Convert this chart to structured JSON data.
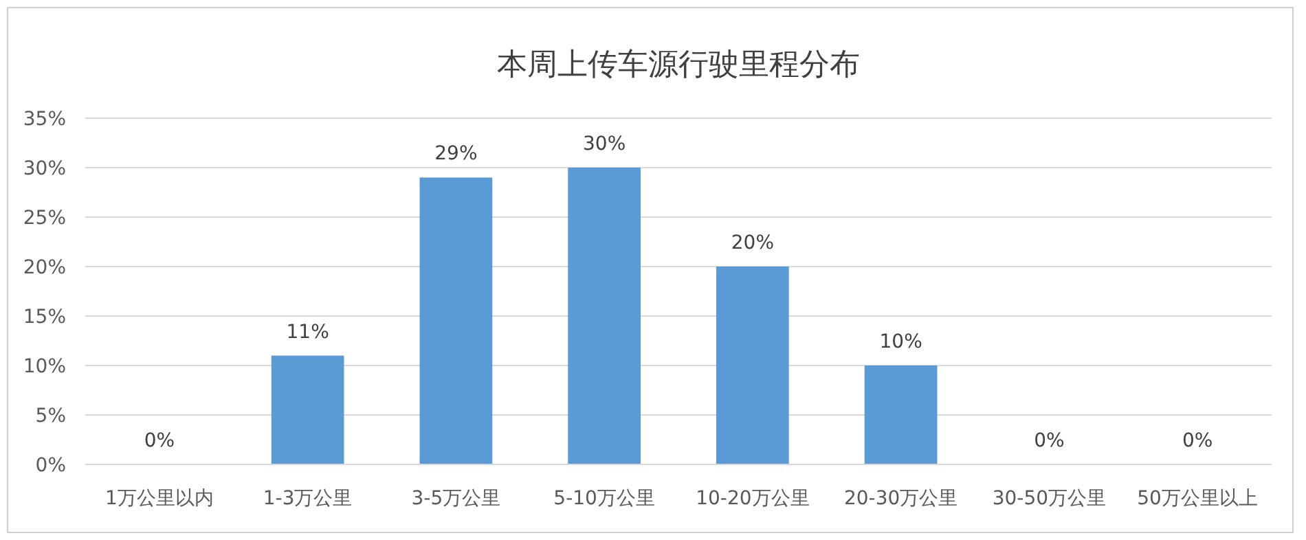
{
  "chart_data": {
    "type": "bar",
    "title": "本周上传车源行驶里程分布",
    "categories": [
      "1万公里以内",
      "1-3万公里",
      "3-5万公里",
      "5-10万公里",
      "10-20万公里",
      "20-30万公里",
      "30-50万公里",
      "50万公里以上"
    ],
    "values": [
      0,
      11,
      29,
      30,
      20,
      10,
      0,
      0
    ],
    "value_labels": [
      "0%",
      "11%",
      "29%",
      "30%",
      "20%",
      "10%",
      "0%",
      "0%"
    ],
    "color": "#5b9bd5",
    "ylim": [
      0,
      35
    ],
    "yticks": [
      {
        "value": 0,
        "label": "0%"
      },
      {
        "value": 5,
        "label": "5%"
      },
      {
        "value": 10,
        "label": "10%"
      },
      {
        "value": 15,
        "label": "15%"
      },
      {
        "value": 20,
        "label": "20%"
      },
      {
        "value": 25,
        "label": "25%"
      },
      {
        "value": 30,
        "label": "30%"
      },
      {
        "value": 35,
        "label": "35%"
      }
    ],
    "grid": "y"
  }
}
